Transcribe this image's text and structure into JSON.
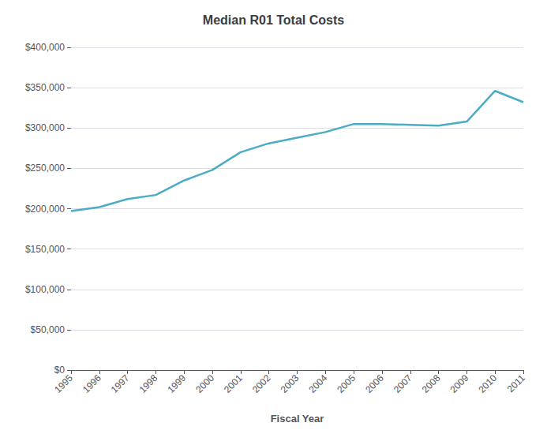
{
  "chart_data": {
    "type": "line",
    "title": "Median R01 Total Costs",
    "xlabel": "Fiscal Year",
    "x": [
      1995,
      1996,
      1997,
      1998,
      1999,
      2000,
      2001,
      2002,
      2003,
      2004,
      2005,
      2006,
      2007,
      2008,
      2009,
      2010,
      2011
    ],
    "values": [
      197000,
      202000,
      212000,
      217000,
      235000,
      248000,
      270000,
      281000,
      288000,
      295000,
      305000,
      305000,
      304000,
      303000,
      308000,
      346000,
      332000
    ],
    "color": "#4BACC6",
    "xlim": [
      1995,
      2011
    ],
    "xticks": [
      1995,
      1996,
      1997,
      1998,
      1999,
      2000,
      2001,
      2002,
      2003,
      2004,
      2005,
      2006,
      2007,
      2008,
      2009,
      2010,
      2011
    ],
    "ylim": [
      0,
      400000
    ],
    "yticks": [
      {
        "value": 0,
        "label": "$0"
      },
      {
        "value": 50000,
        "label": "$50,000"
      },
      {
        "value": 100000,
        "label": "$100,000"
      },
      {
        "value": 150000,
        "label": "$150,000"
      },
      {
        "value": 200000,
        "label": "$200,000"
      },
      {
        "value": 250000,
        "label": "$250,000"
      },
      {
        "value": 300000,
        "label": "$300,000"
      },
      {
        "value": 350000,
        "label": "$350,000"
      },
      {
        "value": 400000,
        "label": "$400,000"
      }
    ],
    "grid": true
  }
}
